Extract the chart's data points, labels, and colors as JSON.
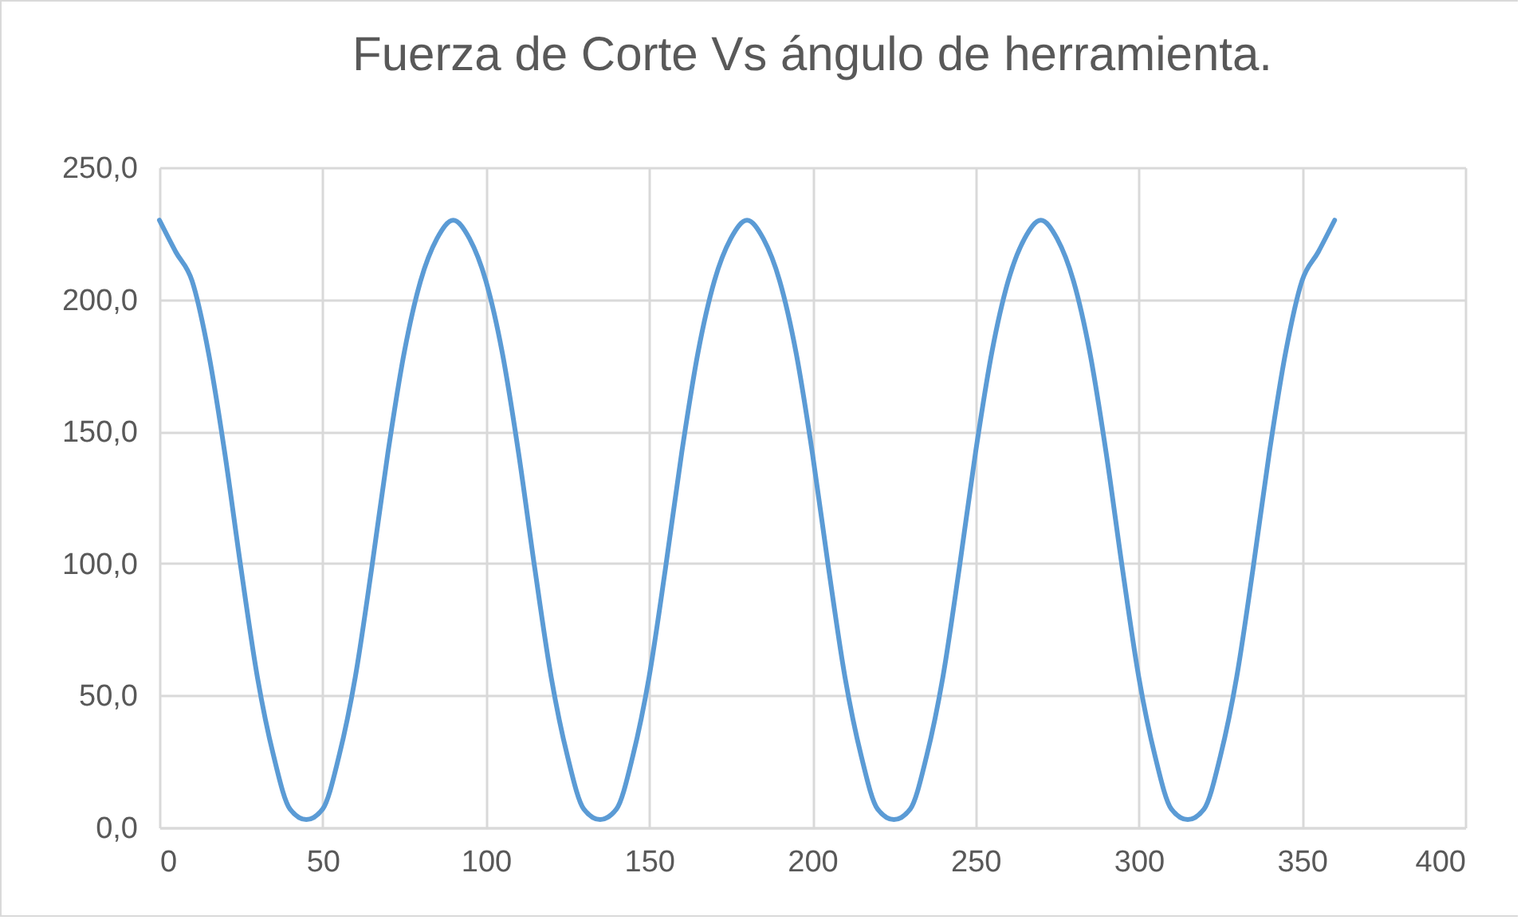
{
  "chart_data": {
    "type": "line",
    "title": "Fuerza de Corte Vs ángulo de herramienta.",
    "x": [
      0,
      5,
      10,
      15,
      20,
      25,
      30,
      35,
      40,
      45,
      50,
      55,
      60,
      65,
      70,
      75,
      80,
      85,
      90,
      95,
      100,
      105,
      110,
      115,
      120,
      125,
      130,
      135,
      140,
      145,
      150,
      155,
      160,
      165,
      170,
      175,
      180,
      185,
      190,
      195,
      200,
      205,
      210,
      215,
      220,
      225,
      230,
      235,
      240,
      245,
      250,
      255,
      260,
      265,
      270,
      275,
      280,
      285,
      290,
      295,
      300,
      305,
      310,
      315,
      320,
      325,
      330,
      335,
      340,
      345,
      350,
      355,
      360
    ],
    "series": [
      {
        "color": "#5b9bd5",
        "values": [
          230,
          218,
          207,
          180,
          142,
          98,
          57,
          27,
          7,
          3,
          7,
          27,
          57,
          98,
          142,
          180,
          207,
          223,
          230,
          223,
          207,
          180,
          142,
          98,
          57,
          27,
          7,
          3,
          7,
          27,
          57,
          98,
          142,
          180,
          207,
          223,
          230,
          223,
          207,
          180,
          142,
          98,
          57,
          27,
          7,
          3,
          7,
          27,
          57,
          98,
          142,
          180,
          207,
          223,
          230,
          223,
          207,
          180,
          142,
          98,
          57,
          27,
          7,
          3,
          7,
          27,
          57,
          98,
          142,
          180,
          207,
          218,
          230
        ]
      }
    ],
    "xlim": [
      0,
      400
    ],
    "xticks": [
      0,
      50,
      100,
      150,
      200,
      250,
      300,
      350,
      400
    ],
    "ylim": [
      0,
      250
    ],
    "yticks": [
      {
        "value": 0,
        "label": "0,0"
      },
      {
        "value": 50,
        "label": "50,0"
      },
      {
        "value": 100,
        "label": "100,0"
      },
      {
        "value": 150,
        "label": "150,0"
      },
      {
        "value": 200,
        "label": "200,0"
      },
      {
        "value": 250,
        "label": "250,0"
      }
    ],
    "grid": true,
    "legend": false,
    "marker": "none",
    "line_style": "solid"
  }
}
